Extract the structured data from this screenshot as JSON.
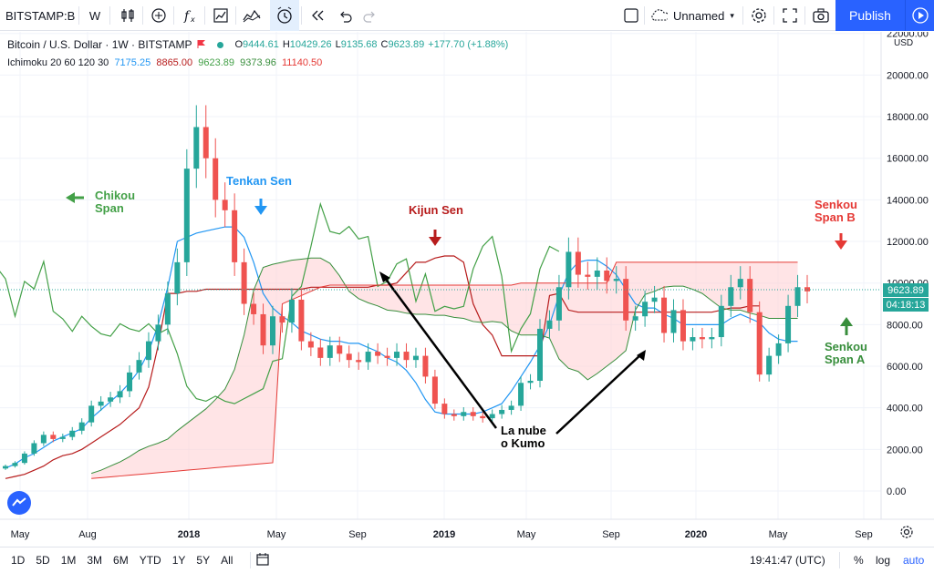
{
  "toolbar": {
    "symbol": "BITSTAMP:B",
    "interval": "W",
    "layout_name": "Unnamed",
    "publish_label": "Publish",
    "icons": [
      "bar-chart-icon",
      "add-compare-icon",
      "indicators-icon",
      "templates-icon",
      "alert-icon",
      "replay-icon",
      "undo-icon",
      "redo-icon",
      "layout-icon",
      "cloud-icon",
      "settings-icon",
      "fullscreen-icon",
      "camera-icon",
      "play-icon"
    ]
  },
  "legend": {
    "title": "Bitcoin / U.S. Dollar · 1W · BITSTAMP",
    "open_label": "O",
    "open": "9444.61",
    "high_label": "H",
    "high": "10429.26",
    "low_label": "L",
    "low": "9135.68",
    "close_label": "C",
    "close": "9623.89",
    "change": "+177.70 (+1.88%)",
    "indicator_name": "Ichimoku 20 60 120 30",
    "ind_values": [
      "7175.25",
      "8865.00",
      "9623.89",
      "9373.96",
      "11140.50"
    ],
    "ind_colors": [
      "#2196f3",
      "#b71c1c",
      "#43a047",
      "#388e3c",
      "#e53935"
    ]
  },
  "price_axis": {
    "currency": "USD",
    "labels": [
      "22000.00",
      "20000.00",
      "18000.00",
      "16000.00",
      "14000.00",
      "12000.00",
      "10000.00",
      "8000.00",
      "6000.00",
      "4000.00",
      "2000.00",
      "0.00"
    ],
    "last_price": "9623.89",
    "countdown": "04:18:13"
  },
  "time_axis": {
    "labels": [
      "May",
      "Aug",
      "2018",
      "May",
      "Sep",
      "2019",
      "May",
      "Sep",
      "2020",
      "May",
      "Sep"
    ]
  },
  "annotations": {
    "chikou": [
      "Chikou",
      "Span"
    ],
    "tenkan": "Tenkan Sen",
    "kijun": "Kijun Sen",
    "senkou_b": [
      "Senkou",
      "Span B"
    ],
    "senkou_a": [
      "Senkou",
      "Span A"
    ],
    "kumo": [
      "La nube",
      "o Kumo"
    ]
  },
  "bottombar": {
    "ranges": [
      "1D",
      "5D",
      "1M",
      "3M",
      "6M",
      "YTD",
      "1Y",
      "5Y",
      "All"
    ],
    "time": "19:41:47 (UTC)",
    "percent": "%",
    "log": "log",
    "auto": "auto"
  },
  "colors": {
    "up": "#26a69a",
    "down": "#ef5350",
    "tenkan": "#2196f3",
    "kijun": "#b71c1c",
    "chikou": "#43a047",
    "senkou_a": "#388e3c",
    "senkou_b": "#e53935",
    "kumo_bull": "#c8e6c9",
    "kumo_bear": "#ffcdd2",
    "accent": "#2962ff"
  },
  "series": {
    "close": [
      1200,
      1350,
      1800,
      2300,
      2700,
      2500,
      2600,
      2900,
      3300,
      4100,
      4300,
      4500,
      4800,
      5700,
      6300,
      7200,
      8000,
      9500,
      11000,
      15500,
      17500,
      16000,
      14000,
      13500,
      11000,
      9000,
      8500,
      7000,
      8400,
      8100,
      9200,
      7200,
      6900,
      6400,
      7000,
      6600,
      6300,
      6200,
      6700,
      6500,
      6400,
      6700,
      6300,
      6500,
      5500,
      4200,
      3700,
      3600,
      3800,
      3600,
      3500,
      3700,
      3900,
      4100,
      5200,
      5300,
      7800,
      8200,
      9800,
      11500,
      10400,
      10300,
      10600,
      10100,
      10200,
      8200,
      8400,
      9100,
      9300,
      7600,
      8700,
      7200,
      7400,
      7300,
      7400,
      8900,
      9800,
      10200,
      8600,
      5600,
      6500,
      7100,
      8900,
      9800,
      9600
    ],
    "tenkan": [
      1100,
      1300,
      1600,
      1800,
      2100,
      2400,
      2600,
      2800,
      3000,
      3500,
      3900,
      4300,
      4700,
      5200,
      5800,
      6700,
      8000,
      9800,
      12000,
      12200,
      12400,
      12500,
      12600,
      12700,
      12700,
      12200,
      11000,
      9500,
      8800,
      8400,
      8100,
      7700,
      7500,
      7300,
      7200,
      7200,
      7100,
      7100,
      6900,
      6700,
      6400,
      6200,
      5800,
      5200,
      4400,
      3800,
      3700,
      3700,
      3700,
      3700,
      3800,
      4000,
      4200,
      4800,
      5500,
      6200,
      7000,
      8000,
      9400,
      10500,
      11000,
      11100,
      11100,
      10800,
      10400,
      9700,
      9000,
      8800,
      8800,
      8500,
      8300,
      8000,
      8000,
      8000,
      8000,
      8000,
      8300,
      8500,
      8300,
      8100,
      7600,
      7300,
      7200,
      7200
    ],
    "kijun": [
      600,
      700,
      800,
      1000,
      1200,
      1500,
      1700,
      1800,
      2000,
      2300,
      2600,
      2900,
      3200,
      3600,
      4000,
      5000,
      7000,
      9500,
      9500,
      9600,
      9600,
      9700,
      9700,
      9700,
      9700,
      9700,
      9700,
      9700,
      9700,
      9700,
      9700,
      9700,
      9800,
      9800,
      9800,
      9800,
      9800,
      9800,
      9800,
      9900,
      9900,
      10000,
      10500,
      11000,
      11000,
      11200,
      11300,
      11300,
      11000,
      9000,
      8000,
      7500,
      6500,
      6500,
      6500,
      6500,
      6500,
      9400,
      9500,
      8700,
      8600,
      8600,
      8600,
      8600,
      8600,
      8600,
      8600,
      8600,
      8600,
      8600,
      8600,
      8600,
      8600,
      8600,
      8600,
      8700,
      8800,
      8800,
      8900,
      8900
    ]
  }
}
